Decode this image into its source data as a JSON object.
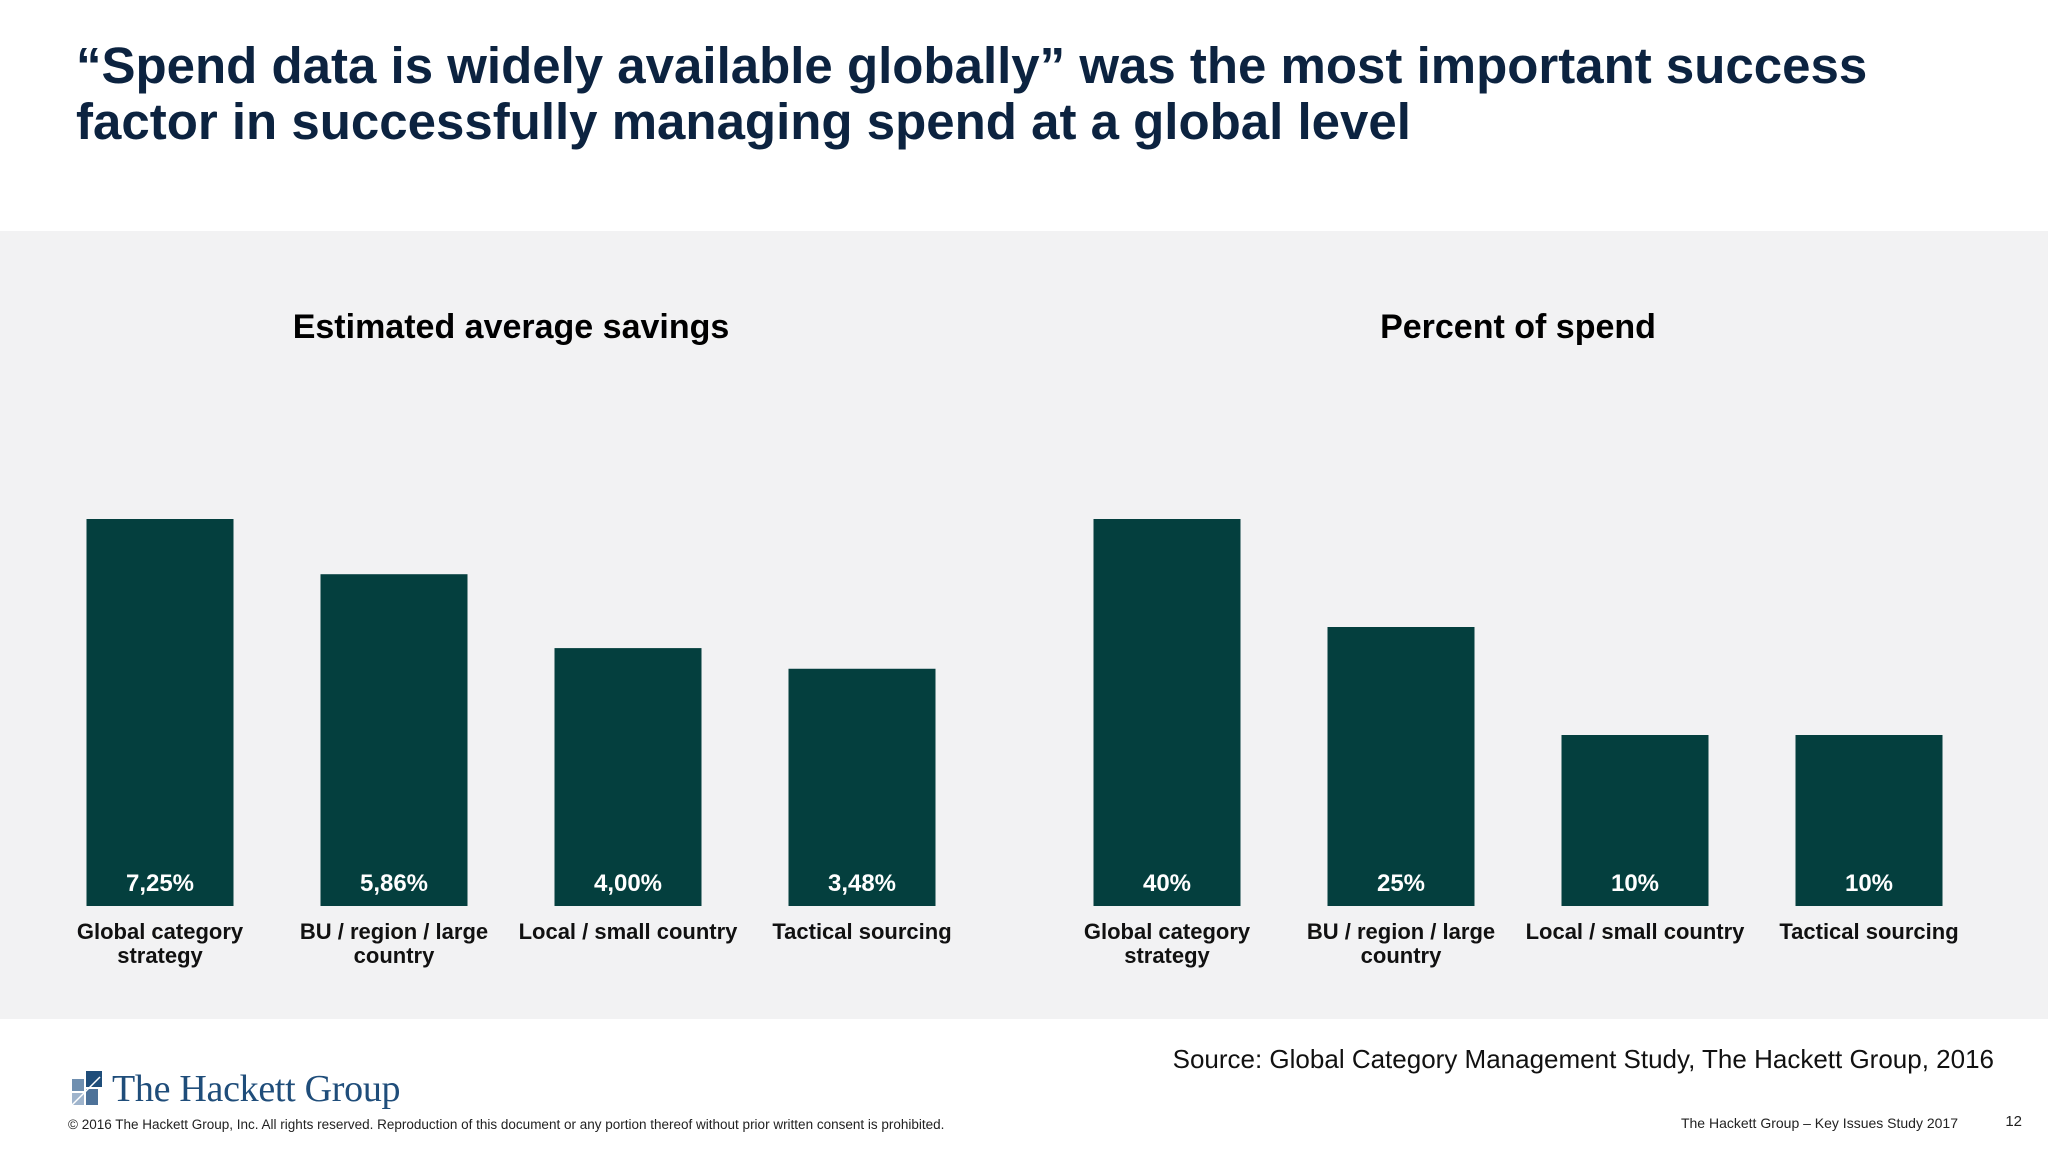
{
  "title": "“Spend data is widely available globally” was the most important success factor in successfully managing spend at a global level",
  "colors": {
    "bar": "#043f3e",
    "panel": "#f2f2f3",
    "title": "#0c2340"
  },
  "chart_data": [
    {
      "type": "bar",
      "title": "Estimated average savings",
      "categories": [
        [
          "Global category",
          "strategy"
        ],
        [
          "BU / region / large",
          "country"
        ],
        [
          "Local / small country"
        ],
        [
          "Tactical sourcing"
        ]
      ],
      "values": [
        7.25,
        5.86,
        4.0,
        3.48
      ],
      "value_labels": [
        "7,25%",
        "5,86%",
        "4,00%",
        "3,48%"
      ],
      "ylim": [
        0,
        7.25
      ]
    },
    {
      "type": "bar",
      "title": "Percent of spend",
      "categories": [
        [
          "Global category",
          "strategy"
        ],
        [
          "BU / region / large",
          "country"
        ],
        [
          "Local / small country"
        ],
        [
          "Tactical sourcing"
        ]
      ],
      "values": [
        40,
        25,
        10,
        10
      ],
      "value_labels": [
        "40%",
        "25%",
        "10%",
        "10%"
      ],
      "ylim": [
        0,
        40
      ]
    }
  ],
  "footer": {
    "source": "Source: Global Category Management Study, The Hackett Group, 2016",
    "logo_text": "The Hackett Group",
    "copyright": "© 2016 The Hackett Group, Inc. All rights reserved. Reproduction of this document or any portion thereof without prior written consent is prohibited.",
    "study": "The Hackett Group – Key Issues Study 2017",
    "page": "12"
  }
}
